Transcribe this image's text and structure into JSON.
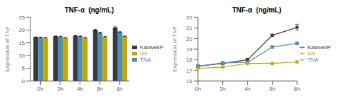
{
  "chart_data": [
    {
      "type": "bar",
      "title": "TNF-α  (ng/mL)",
      "ylabel": "Expression of TNF",
      "categories": [
        "0h",
        "3h",
        "4h",
        "5h",
        "6h"
      ],
      "series": [
        {
          "name": "KabiveiIP",
          "color": "#3a3a3a",
          "values": [
            17.2,
            17.6,
            17.8,
            20.1,
            21.0
          ],
          "errors": [
            0.12,
            0.12,
            0.12,
            0.18,
            0.28
          ]
        },
        {
          "name": "TNA",
          "color": "#4a8fc0",
          "values": [
            17.1,
            17.5,
            17.6,
            19.0,
            19.3
          ],
          "errors": [
            0.12,
            0.12,
            0.12,
            0.18,
            0.18
          ]
        },
        {
          "name": "NS",
          "color": "#c8a800",
          "values": [
            17.0,
            17.0,
            17.0,
            17.4,
            17.6
          ],
          "errors": [
            0.08,
            0.08,
            0.08,
            0.12,
            0.12
          ]
        }
      ],
      "ylim": [
        0,
        25
      ],
      "yticks": [
        0,
        5,
        10,
        15,
        20,
        25
      ],
      "grid": false,
      "legend": "right"
    },
    {
      "type": "line",
      "title": "TNF-α  (ng/mL)",
      "ylabel": "Expression of TNF",
      "categories": [
        "0h",
        "3h",
        "4h",
        "5h",
        "6h"
      ],
      "series": [
        {
          "name": "KabiveiIP",
          "color": "#3a3a3a",
          "marker": "circle",
          "values": [
            17.4,
            17.65,
            18.0,
            20.3,
            21.05
          ],
          "errors": [
            0.1,
            0.1,
            0.12,
            0.12,
            0.28
          ]
        },
        {
          "name": "TNA",
          "color": "#4a8fc0",
          "marker": "square",
          "values": [
            17.4,
            17.7,
            17.75,
            19.2,
            19.55
          ],
          "errors": [
            0.1,
            0.1,
            0.1,
            0.1,
            0.12
          ]
        },
        {
          "name": "NS",
          "color": "#c8a800",
          "marker": "diamond",
          "values": [
            17.2,
            17.3,
            17.65,
            17.65,
            17.8
          ],
          "errors": [
            0.08,
            0.08,
            0.08,
            0.1,
            0.1
          ]
        }
      ],
      "ylim": [
        16,
        22
      ],
      "yticks": [
        16,
        17,
        18,
        19,
        20,
        21,
        22
      ],
      "grid": false,
      "legend": "right"
    }
  ]
}
